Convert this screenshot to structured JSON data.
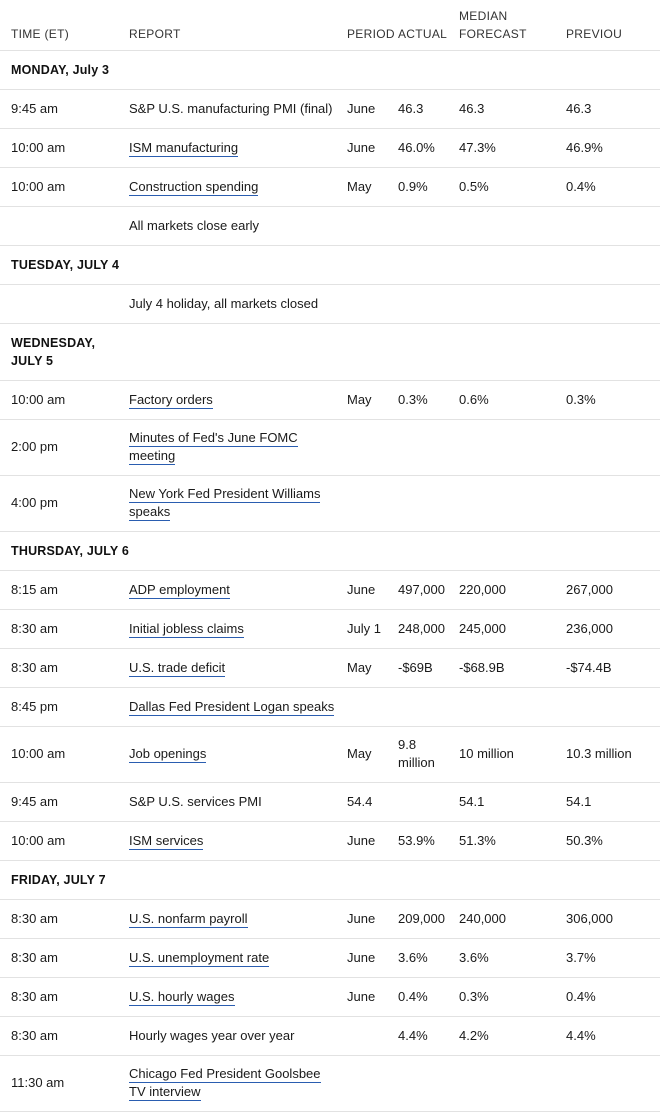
{
  "headers": {
    "time": "TIME (ET)",
    "report": "REPORT",
    "period": "PERIOD",
    "actual": "ACTUAL",
    "median_forecast": "MEDIAN FORECAST",
    "previous": "PREVIOU"
  },
  "rows": [
    {
      "type": "day",
      "label": "MONDAY, July 3"
    },
    {
      "type": "data",
      "time": "9:45 am",
      "report": "S&P U.S. manufacturing PMI (final)",
      "link": false,
      "period": "June",
      "actual": "46.3",
      "median": "46.3",
      "previous": "46.3"
    },
    {
      "type": "data",
      "time": "10:00 am",
      "report": "ISM manufacturing",
      "link": true,
      "period": "June",
      "actual": "46.0%",
      "median": "47.3%",
      "previous": "46.9%"
    },
    {
      "type": "data",
      "time": "10:00 am",
      "report": "Construction spending",
      "link": true,
      "period": "May",
      "actual": "0.9%",
      "median": "0.5%",
      "previous": "0.4%"
    },
    {
      "type": "data",
      "time": "",
      "report": "All markets close early",
      "link": false,
      "period": "",
      "actual": "",
      "median": "",
      "previous": ""
    },
    {
      "type": "day",
      "label": "TUESDAY, JULY 4"
    },
    {
      "type": "data",
      "time": "",
      "report": "July 4 holiday, all markets closed",
      "link": false,
      "period": "",
      "actual": "",
      "median": "",
      "previous": ""
    },
    {
      "type": "day",
      "label": "WEDNESDAY, JULY 5",
      "tall": true
    },
    {
      "type": "data",
      "time": "10:00 am",
      "report": "Factory orders",
      "link": true,
      "period": "May",
      "actual": "0.3%",
      "median": "0.6%",
      "previous": "0.3%"
    },
    {
      "type": "data",
      "time": "2:00 pm",
      "report": "Minutes of Fed's June FOMC meeting",
      "link": true,
      "period": "",
      "actual": "",
      "median": "",
      "previous": "",
      "tall": true
    },
    {
      "type": "data",
      "time": "4:00 pm",
      "report": "New York Fed President Williams speaks",
      "link": true,
      "period": "",
      "actual": "",
      "median": "",
      "previous": "",
      "tall": true
    },
    {
      "type": "day",
      "label": "THURSDAY, JULY 6"
    },
    {
      "type": "data",
      "time": "8:15 am",
      "report": "ADP employment",
      "link": true,
      "period": "June",
      "actual": "497,000",
      "median": "220,000",
      "previous": "267,000"
    },
    {
      "type": "data",
      "time": "8:30 am",
      "report": "Initial jobless claims",
      "link": true,
      "period": "July 1",
      "actual": "248,000",
      "median": "245,000",
      "previous": "236,000"
    },
    {
      "type": "data",
      "time": "8:30 am",
      "report": "U.S. trade deficit",
      "link": true,
      "period": "May",
      "actual": "-$69B",
      "median": "-$68.9B",
      "previous": "-$74.4B"
    },
    {
      "type": "data",
      "time": "8:45 pm",
      "report": "Dallas Fed President Logan speaks",
      "link": true,
      "period": "",
      "actual": "",
      "median": "",
      "previous": ""
    },
    {
      "type": "data",
      "time": "10:00 am",
      "report": "Job openings",
      "link": true,
      "period": "May",
      "actual": "9.8 million",
      "median": "10 million",
      "previous": "10.3 million",
      "tall": true
    },
    {
      "type": "data",
      "time": "9:45 am",
      "report": "S&P U.S. services PMI",
      "link": false,
      "period": "54.4",
      "actual": "",
      "median": "54.1",
      "previous": "54.1"
    },
    {
      "type": "data",
      "time": "10:00 am",
      "report": "ISM services",
      "link": true,
      "period": "June",
      "actual": "53.9%",
      "median": "51.3%",
      "previous": "50.3%"
    },
    {
      "type": "day",
      "label": "FRIDAY, JULY 7"
    },
    {
      "type": "data",
      "time": "8:30 am",
      "report": "U.S. nonfarm payroll",
      "link": true,
      "period": "June",
      "actual": "209,000",
      "median": "240,000",
      "previous": "306,000"
    },
    {
      "type": "data",
      "time": "8:30 am",
      "report": "U.S. unemployment rate",
      "link": true,
      "period": "June",
      "actual": "3.6%",
      "median": "3.6%",
      "previous": "3.7%"
    },
    {
      "type": "data",
      "time": "8:30 am",
      "report": "U.S. hourly wages",
      "link": true,
      "period": "June",
      "actual": "0.4%",
      "median": "0.3%",
      "previous": "0.4%"
    },
    {
      "type": "data",
      "time": "8:30 am",
      "report": "Hourly wages year over year",
      "link": false,
      "period": "",
      "actual": "4.4%",
      "median": "4.2%",
      "previous": "4.4%"
    },
    {
      "type": "data",
      "time": "11:30 am",
      "report": "Chicago Fed President Goolsbee TV interview",
      "link": true,
      "period": "",
      "actual": "",
      "median": "",
      "previous": "",
      "tall": true
    }
  ]
}
